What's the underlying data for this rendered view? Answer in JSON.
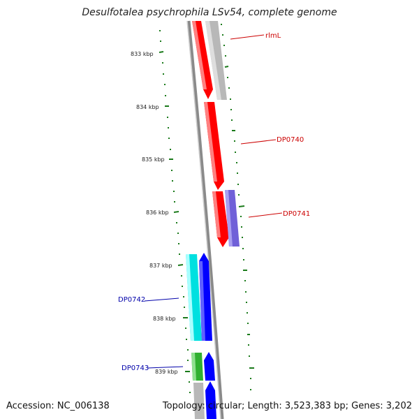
{
  "title": "Desulfotalea psychrophila LSv54, complete genome",
  "footer": {
    "accession": "Accession: NC_006138",
    "summary": "Topology: circular; Length: 3,523,383 bp; Genes: 3,202"
  },
  "colors": {
    "backbone": "#808080",
    "tick": "#1a7a1a",
    "forward_gene": "#ff0000",
    "forward_label": "#cc0000",
    "reverse_label": "#0000aa",
    "grey_gene": "#b8b8b8",
    "purple_gene": "#7060d8",
    "cyan_gene": "#00e0e0",
    "blue_gene": "#0000ff",
    "green_gene": "#30b030"
  },
  "scale_labels": [
    "833 kbp",
    "834 kbp",
    "835 kbp",
    "836 kbp",
    "837 kbp",
    "838 kbp",
    "839 kbp"
  ],
  "gene_labels": [
    {
      "text": "rlmL",
      "strand": "forward"
    },
    {
      "text": "DP0740",
      "strand": "forward"
    },
    {
      "text": "DP0741",
      "strand": "forward"
    },
    {
      "text": "DP0742",
      "strand": "reverse"
    },
    {
      "text": "DP0743",
      "strand": "reverse"
    }
  ]
}
